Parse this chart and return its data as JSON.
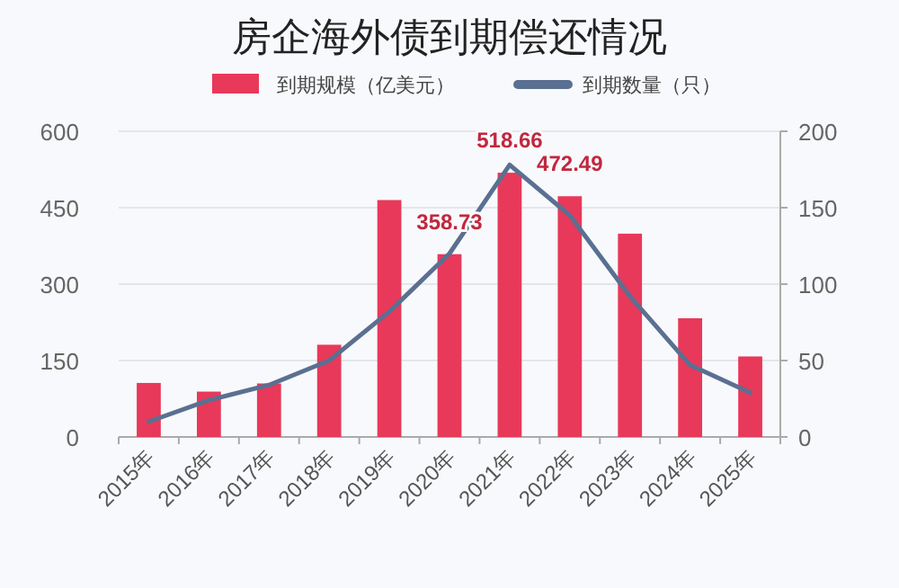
{
  "chart_data": {
    "type": "bar",
    "title": "房企海外债到期偿还情况",
    "categories": [
      "2015年",
      "2016年",
      "2017年",
      "2018年",
      "2019年",
      "2020年",
      "2021年",
      "2022年",
      "2023年",
      "2024年",
      "2025年"
    ],
    "series": [
      {
        "name": "到期规模（亿美元）",
        "color": "#e8395a",
        "values": [
          106,
          89,
          105,
          181,
          465,
          358.73,
          518.66,
          472.49,
          399,
          233,
          158
        ],
        "value_labels": [
          null,
          null,
          null,
          null,
          null,
          "358.73",
          "518.66",
          "472.49",
          null,
          null,
          null
        ]
      },
      {
        "name": "到期数量（只）",
        "type": "line",
        "axis": "y2",
        "color": "#5a7091",
        "values": [
          10,
          24,
          34,
          50,
          82,
          120,
          178,
          145,
          92,
          47,
          29
        ]
      }
    ],
    "ylim": [
      0,
      600
    ],
    "yticks": [
      0,
      150,
      300,
      450,
      600
    ],
    "y2lim": [
      0,
      200
    ],
    "y2ticks": [
      0,
      50,
      100,
      150,
      200
    ],
    "grid": "y",
    "legend": "top",
    "marker": "none",
    "line_style": "solid"
  }
}
